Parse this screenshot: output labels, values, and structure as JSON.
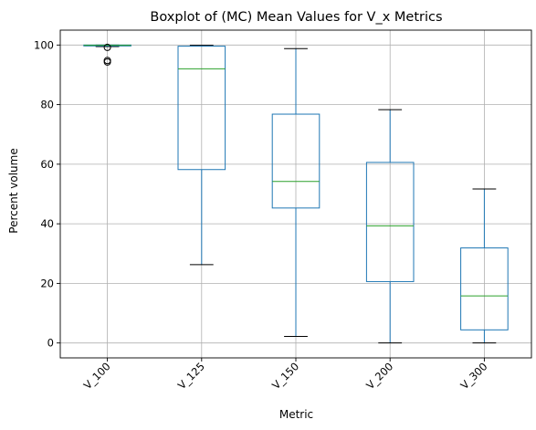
{
  "chart_data": {
    "type": "boxplot",
    "title": "Boxplot of (MC) Mean Values for V_x Metrics",
    "xlabel": "Metric",
    "ylabel": "Percent volume",
    "categories": [
      "V_100",
      "V_125",
      "V_150",
      "V_200",
      "V_300"
    ],
    "ylim": [
      -5,
      105
    ],
    "yticks": [
      0,
      20,
      40,
      60,
      80,
      100
    ],
    "grid": true,
    "boxes": [
      {
        "name": "V_100",
        "whisker_low": 99.5,
        "q1": 99.7,
        "median": 99.9,
        "q3": 100,
        "whisker_high": 100,
        "outliers": [
          99.2,
          94.8,
          94.3
        ]
      },
      {
        "name": "V_125",
        "whisker_low": 26.3,
        "q1": 58.2,
        "median": 92,
        "q3": 99.6,
        "whisker_high": 99.9,
        "outliers": []
      },
      {
        "name": "V_150",
        "whisker_low": 2.2,
        "q1": 45.3,
        "median": 54.2,
        "q3": 76.8,
        "whisker_high": 98.8,
        "outliers": []
      },
      {
        "name": "V_200",
        "whisker_low": 0,
        "q1": 20.6,
        "median": 39.3,
        "q3": 60.6,
        "whisker_high": 78.3,
        "outliers": []
      },
      {
        "name": "V_300",
        "whisker_low": 0,
        "q1": 4.4,
        "median": 15.8,
        "q3": 31.9,
        "whisker_high": 51.7,
        "outliers": []
      }
    ],
    "colors": {
      "box": "#1f77b4",
      "median": "#2ca02c",
      "whisker_cap": "#000000",
      "outlier": "#000000",
      "grid": "#b0b0b0"
    }
  }
}
